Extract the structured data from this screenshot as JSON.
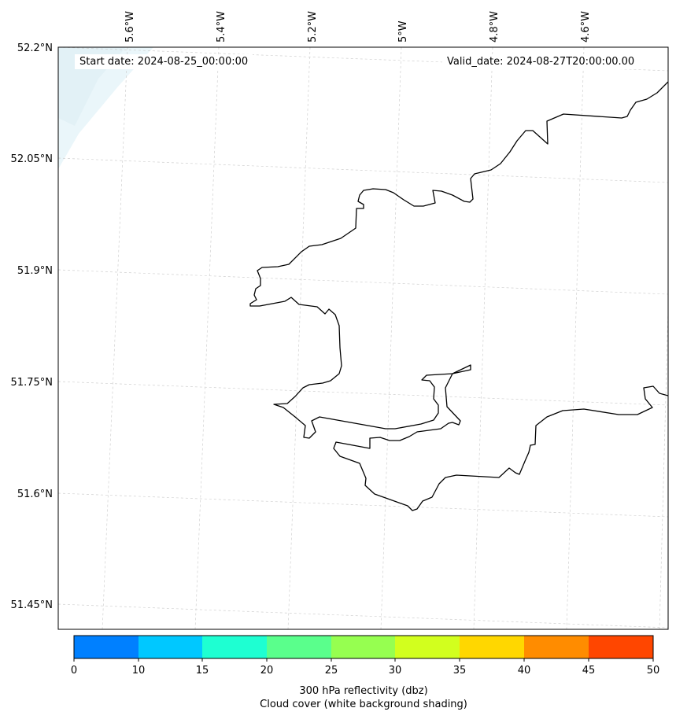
{
  "annotations": {
    "start_date": "Start date: 2024-08-25_00:00:00",
    "valid_date": "Valid_date: 2024-08-27T20:00:00.00"
  },
  "map": {
    "longitude_labels": [
      "5.6°W",
      "5.4°W",
      "5.2°W",
      "5°W",
      "4.8°W",
      "4.6°W"
    ],
    "latitude_labels": [
      "52.2°N",
      "52.05°N",
      "51.9°N",
      "51.75°N",
      "51.6°N",
      "51.45°N"
    ],
    "gridlines": true,
    "coastline_color": "#000000",
    "cloud_shading_color": "#e6f4f8"
  },
  "colorbar": {
    "label": "300 hPa reflectivity (dbz)",
    "sublabel": "Cloud cover (white background shading)",
    "ticks": [
      "0",
      "10",
      "15",
      "20",
      "25",
      "30",
      "35",
      "40",
      "45",
      "50"
    ],
    "colors": [
      "#0080ff",
      "#00c8ff",
      "#1effd2",
      "#5aff8c",
      "#96ff50",
      "#d2ff1e",
      "#ffd700",
      "#ff8c00",
      "#ff4600"
    ]
  }
}
